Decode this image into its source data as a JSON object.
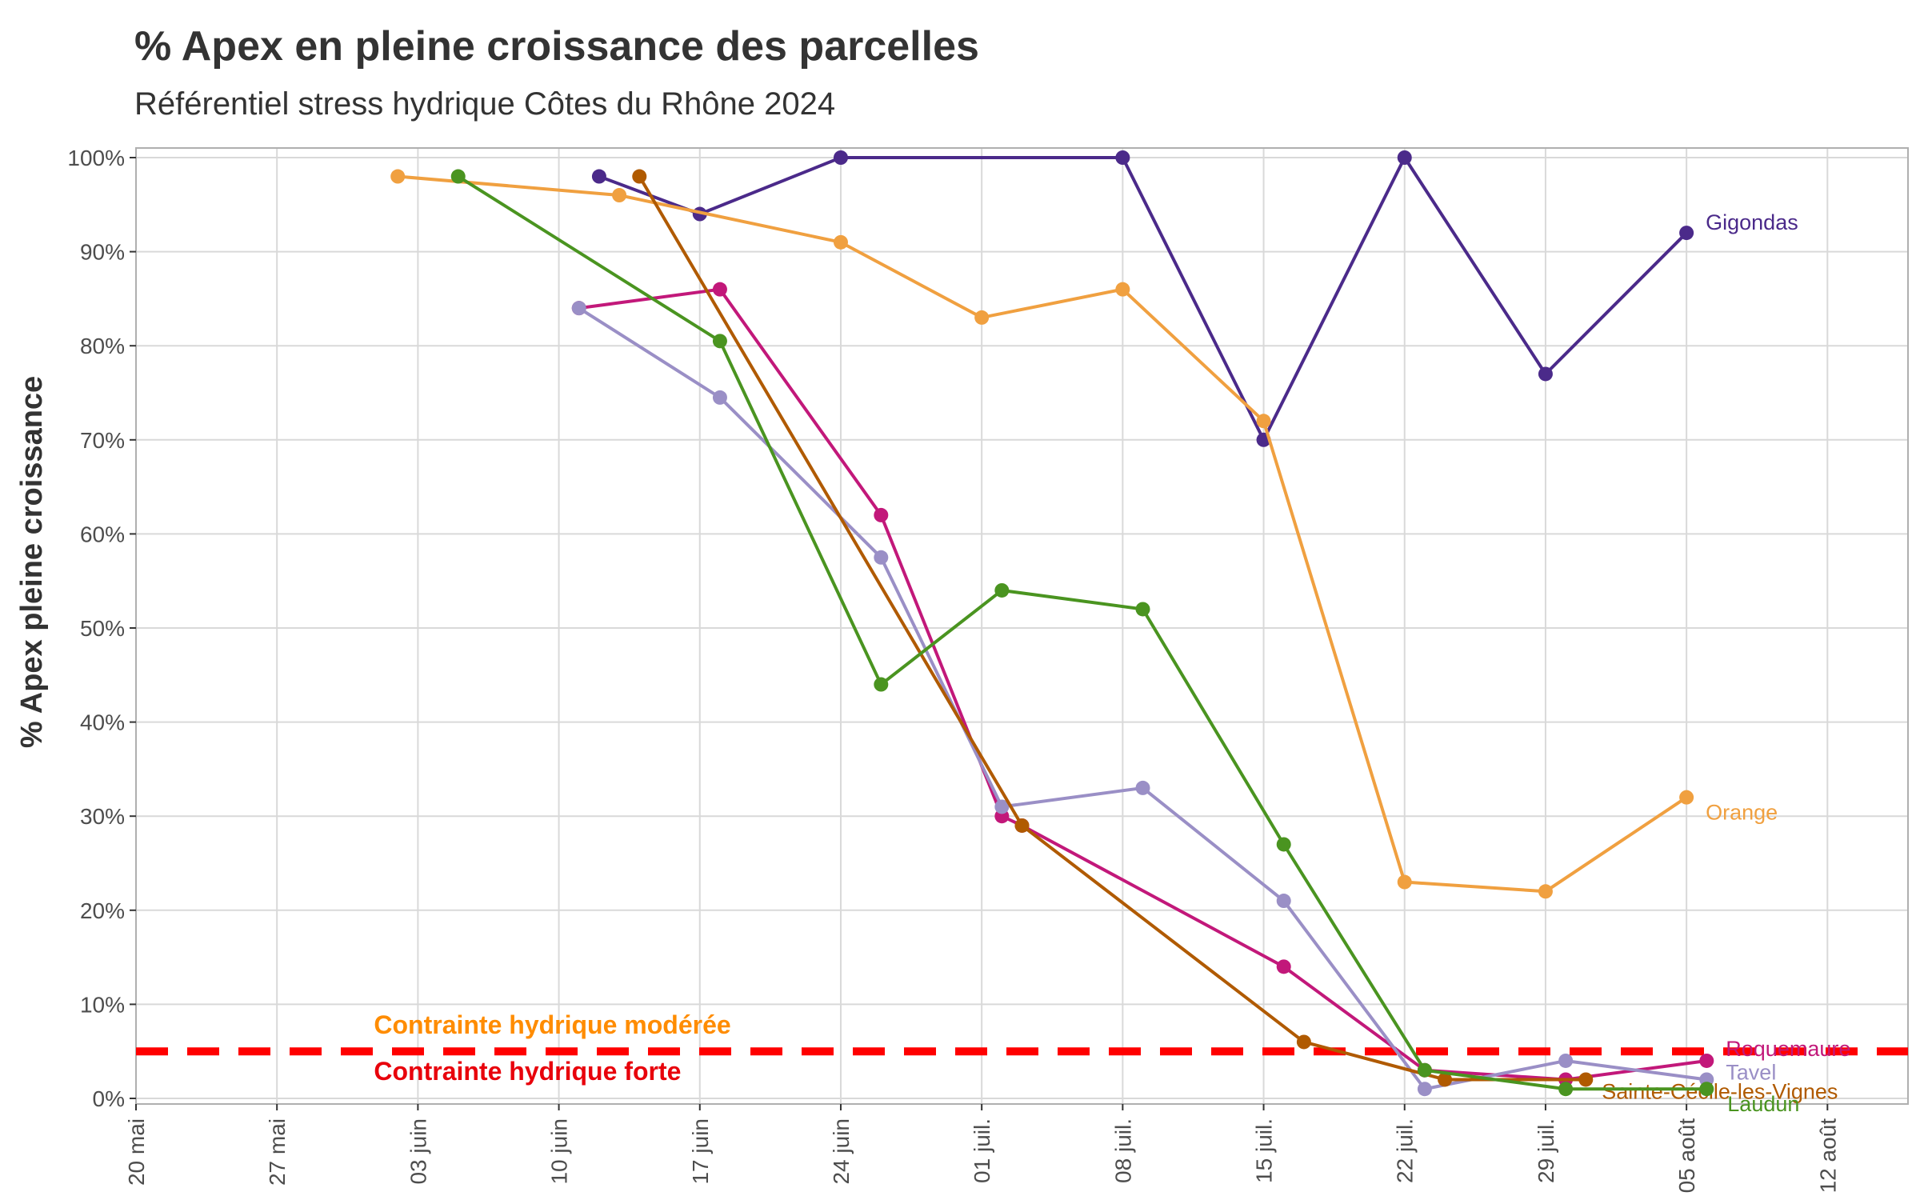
{
  "chart_data": {
    "type": "line",
    "title": "% Apex en pleine croissance des parcelles",
    "subtitle": "Référentiel stress hydrique Côtes du Rhône 2024",
    "ylabel": "% Apex pleine croissance",
    "xlabel": "",
    "x_range": [
      "2024-05-20",
      "2024-08-16"
    ],
    "ylim": [
      0,
      100
    ],
    "y_ticks": [
      0,
      10,
      20,
      30,
      40,
      50,
      60,
      70,
      80,
      90,
      100
    ],
    "y_tick_labels": [
      "0%",
      "10%",
      "20%",
      "30%",
      "40%",
      "50%",
      "60%",
      "70%",
      "80%",
      "90%",
      "100%"
    ],
    "x_ticks": [
      "2024-05-20",
      "2024-05-27",
      "2024-06-03",
      "2024-06-10",
      "2024-06-17",
      "2024-06-24",
      "2024-07-01",
      "2024-07-08",
      "2024-07-15",
      "2024-07-22",
      "2024-07-29",
      "2024-08-05",
      "2024-08-12"
    ],
    "x_tick_labels": [
      "20 mai",
      "27 mai",
      "03 juin",
      "10 juin",
      "17 juin",
      "24 juin",
      "01 juil.",
      "08 juil.",
      "15 juil.",
      "22 juil.",
      "29 juil.",
      "05 août",
      "12 août"
    ],
    "grid": true,
    "legend": "direct labels at line ends",
    "threshold": {
      "y": 5,
      "color": "#FF0000",
      "label_above": "Contrainte hydrique modérée",
      "label_above_color": "#FF8C00",
      "label_below": "Contrainte hydrique forte",
      "label_below_color": "#E8000B"
    },
    "series": [
      {
        "name": "Gigondas",
        "color": "#4B2A8A",
        "points": [
          [
            "2024-06-12",
            98
          ],
          [
            "2024-06-17",
            94
          ],
          [
            "2024-06-24",
            100
          ],
          [
            "2024-07-08",
            100
          ],
          [
            "2024-07-15",
            70
          ],
          [
            "2024-07-22",
            100
          ],
          [
            "2024-07-29",
            77
          ],
          [
            "2024-08-05",
            92
          ]
        ]
      },
      {
        "name": "Orange",
        "color": "#F0A040",
        "points": [
          [
            "2024-06-02",
            98
          ],
          [
            "2024-06-13",
            96
          ],
          [
            "2024-06-24",
            91
          ],
          [
            "2024-07-01",
            83
          ],
          [
            "2024-07-08",
            86
          ],
          [
            "2024-07-15",
            72
          ],
          [
            "2024-07-22",
            23
          ],
          [
            "2024-07-29",
            22
          ],
          [
            "2024-08-05",
            32
          ]
        ]
      },
      {
        "name": "Roquemaure",
        "color": "#C2187A",
        "points": [
          [
            "2024-06-11",
            84
          ],
          [
            "2024-06-18",
            86
          ],
          [
            "2024-06-26",
            62
          ],
          [
            "2024-07-02",
            30
          ],
          [
            "2024-07-03",
            29
          ],
          [
            "2024-07-16",
            14
          ],
          [
            "2024-07-23",
            3
          ],
          [
            "2024-07-30",
            2
          ],
          [
            "2024-08-06",
            4
          ]
        ]
      },
      {
        "name": "Tavel",
        "color": "#9A8FC6",
        "points": [
          [
            "2024-06-11",
            84
          ],
          [
            "2024-06-18",
            74.5
          ],
          [
            "2024-06-26",
            57.5
          ],
          [
            "2024-07-02",
            31
          ],
          [
            "2024-07-09",
            33
          ],
          [
            "2024-07-16",
            21
          ],
          [
            "2024-07-23",
            1
          ],
          [
            "2024-07-30",
            4
          ],
          [
            "2024-08-06",
            2
          ]
        ]
      },
      {
        "name": "Sainte-Cécile-les-Vignes",
        "color": "#B05A00",
        "points": [
          [
            "2024-06-14",
            98
          ],
          [
            "2024-07-03",
            29
          ],
          [
            "2024-07-17",
            6
          ],
          [
            "2024-07-24",
            2
          ],
          [
            "2024-07-31",
            2
          ]
        ]
      },
      {
        "name": "Laudun",
        "color": "#4A9420",
        "points": [
          [
            "2024-06-05",
            98
          ],
          [
            "2024-06-18",
            80.5
          ],
          [
            "2024-06-26",
            44
          ],
          [
            "2024-07-02",
            54
          ],
          [
            "2024-07-09",
            52
          ],
          [
            "2024-07-16",
            27
          ],
          [
            "2024-07-23",
            3
          ],
          [
            "2024-07-30",
            1
          ],
          [
            "2024-08-06",
            1
          ]
        ]
      }
    ]
  }
}
